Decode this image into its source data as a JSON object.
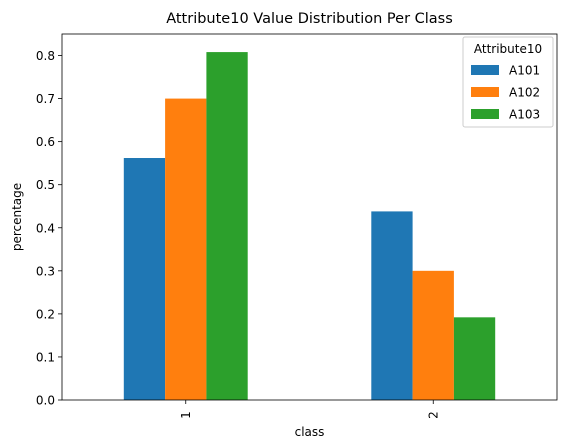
{
  "chart_data": {
    "type": "bar",
    "title": "Attribute10 Value Distribution Per Class",
    "xlabel": "class",
    "ylabel": "percentage",
    "categories": [
      "1",
      "2"
    ],
    "ylim": [
      0,
      0.85
    ],
    "yticks": [
      0.0,
      0.1,
      0.2,
      0.3,
      0.4,
      0.5,
      0.6,
      0.7,
      0.8
    ],
    "grid": false,
    "legend": {
      "title": "Attribute10",
      "placement": "top-right"
    },
    "series": [
      {
        "name": "A101",
        "color": "#1f77b4",
        "values": [
          0.562,
          0.438
        ]
      },
      {
        "name": "A102",
        "color": "#ff7f0e",
        "values": [
          0.7,
          0.3
        ]
      },
      {
        "name": "A103",
        "color": "#2ca02c",
        "values": [
          0.808,
          0.192
        ]
      }
    ]
  }
}
